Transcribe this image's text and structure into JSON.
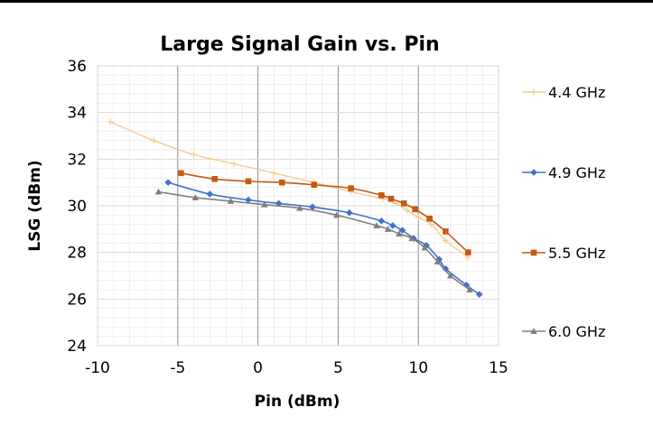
{
  "chart_data": {
    "type": "line",
    "title": "Large Signal Gain vs. Pin",
    "xlabel": "Pin (dBm)",
    "ylabel": "LSG (dBm)",
    "xlim": [
      -10,
      15
    ],
    "ylim": [
      24,
      36
    ],
    "xticks": [
      -10,
      -5,
      0,
      5,
      10,
      15
    ],
    "yticks": [
      24,
      26,
      28,
      30,
      32,
      34,
      36
    ],
    "x_tick_labels": [
      "-10",
      "-5",
      "0",
      "5",
      "10",
      "15"
    ],
    "y_tick_labels": [
      "24",
      "26",
      "28",
      "30",
      "32",
      "34",
      "36"
    ],
    "grid": "major and minor",
    "legend_position": "right",
    "series": [
      {
        "name": "4.4 GHz",
        "color": "#FAC890",
        "marker": "plus",
        "x": [
          -9.2,
          -6.5,
          -4.0,
          -1.5,
          1.0,
          3.5,
          5.8,
          7.8,
          8.6,
          9.3,
          10.0,
          10.8,
          11.7,
          13.1
        ],
        "y": [
          33.6,
          32.8,
          32.2,
          31.8,
          31.4,
          31.0,
          30.6,
          30.3,
          30.1,
          29.8,
          29.5,
          29.2,
          28.5,
          27.8
        ]
      },
      {
        "name": "4.9 GHz",
        "color": "#4472C4",
        "marker": "diamond",
        "x": [
          -5.6,
          -3.0,
          -0.6,
          1.3,
          3.4,
          5.7,
          7.7,
          8.4,
          9.0,
          9.7,
          10.5,
          11.3,
          11.7,
          13.0,
          13.8
        ],
        "y": [
          31.0,
          30.5,
          30.25,
          30.1,
          29.95,
          29.7,
          29.35,
          29.15,
          28.95,
          28.6,
          28.3,
          27.7,
          27.3,
          26.6,
          26.2
        ]
      },
      {
        "name": "5.5 GHz",
        "color": "#C55A11",
        "marker": "square",
        "x": [
          -4.8,
          -2.7,
          -0.6,
          1.5,
          3.5,
          5.8,
          7.7,
          8.3,
          9.1,
          9.8,
          10.7,
          11.7,
          13.1
        ],
        "y": [
          31.4,
          31.15,
          31.05,
          31.0,
          30.9,
          30.75,
          30.45,
          30.3,
          30.1,
          29.85,
          29.45,
          28.9,
          28.0
        ]
      },
      {
        "name": "6.0 GHz",
        "color": "#808080",
        "marker": "triangle",
        "x": [
          -6.2,
          -3.9,
          -1.7,
          0.4,
          2.6,
          4.9,
          7.4,
          8.1,
          8.8,
          9.6,
          10.4,
          11.2,
          12.0,
          13.2
        ],
        "y": [
          30.6,
          30.35,
          30.2,
          30.05,
          29.9,
          29.6,
          29.15,
          29.0,
          28.8,
          28.6,
          28.2,
          27.6,
          27.0,
          26.4
        ]
      }
    ]
  }
}
